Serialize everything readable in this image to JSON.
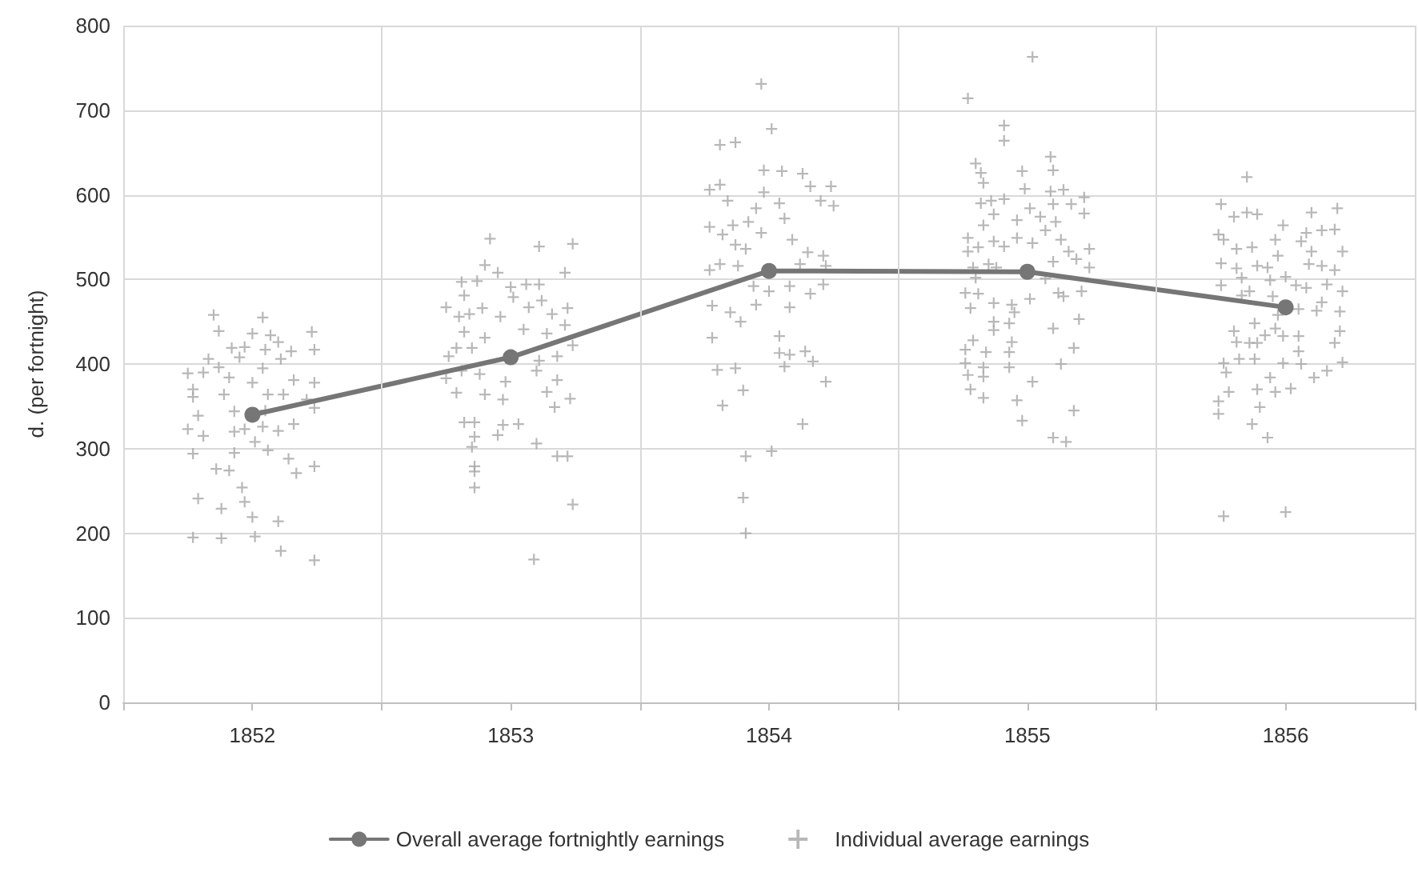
{
  "chart_data": {
    "type": "scatter",
    "ylabel": "d. (per fortnight)",
    "xlim": [
      1851.5,
      1856.5
    ],
    "xticks": [
      {
        "value": 1851.5,
        "label": null
      },
      1852,
      {
        "value": 1852.5,
        "label": null
      },
      1853,
      {
        "value": 1853.5,
        "label": null
      },
      1854,
      {
        "value": 1854.5,
        "label": null
      },
      1855,
      {
        "value": 1855.5,
        "label": null
      },
      1856,
      {
        "value": 1856.5,
        "label": null
      }
    ],
    "ylim": [
      0,
      800
    ],
    "yticks": [
      0,
      100,
      200,
      300,
      400,
      500,
      600,
      700,
      800
    ],
    "grid": true,
    "legend": "bottom",
    "series": [
      {
        "name": "Overall average fortnightly earnings",
        "type": "line",
        "color": "#767676",
        "marker": "circle",
        "line_style": "solid",
        "x": [
          1852,
          1853,
          1854,
          1855,
          1856
        ],
        "values": [
          340,
          408,
          510,
          509,
          467
        ]
      },
      {
        "name": "Individual average earnings",
        "type": "scatter",
        "color": "#a6a6a6",
        "marker": "cross",
        "x": [
          1851.85,
          1852.04,
          1851.87,
          1852,
          1852.23,
          1852.07,
          1852.1,
          1851.92,
          1851.97,
          1852.05,
          1852.24,
          1852.15,
          1851.95,
          1851.83,
          1852.11,
          1851.87,
          1852.04,
          1851.75,
          1851.81,
          1851.91,
          1852,
          1852.16,
          1852.24,
          1851.77,
          1851.89,
          1852.06,
          1852.12,
          1852.21,
          1851.77,
          1851.93,
          1851.79,
          1852.05,
          1852.24,
          1852.16,
          1851.75,
          1851.81,
          1851.93,
          1851.97,
          1852.04,
          1852.1,
          1852.01,
          1852.06,
          1851.77,
          1851.93,
          1852.14,
          1851.86,
          1851.91,
          1852.17,
          1852.24,
          1851.96,
          1851.79,
          1851.97,
          1851.88,
          1852,
          1852.1,
          1851.77,
          1851.88,
          1852.01,
          1852.11,
          1852.24,
          1852.92,
          1853.11,
          1853.24,
          1852.9,
          1852.95,
          1853.21,
          1852.81,
          1852.87,
          1853,
          1853.06,
          1853.11,
          1852.82,
          1853.01,
          1852.75,
          1852.89,
          1853.12,
          1853.22,
          1852.8,
          1852.84,
          1852.96,
          1853.07,
          1853.16,
          1852.82,
          1852.9,
          1853.05,
          1853.14,
          1853.21,
          1852.79,
          1852.85,
          1853.24,
          1852.76,
          1853.11,
          1853.18,
          1852.81,
          1852.88,
          1853.1,
          1852.75,
          1852.98,
          1853.18,
          1852.79,
          1852.9,
          1852.97,
          1853.14,
          1853.23,
          1853.17,
          1852.82,
          1852.86,
          1852.97,
          1853.03,
          1852.95,
          1852.86,
          1852.85,
          1853.1,
          1853.18,
          1853.22,
          1852.86,
          1852.86,
          1852.86,
          1853.24,
          1853.09,
          1853.97,
          1854.01,
          1853.81,
          1853.87,
          1853.98,
          1854.05,
          1854.13,
          1854.16,
          1853.77,
          1853.81,
          1854.24,
          1853.84,
          1853.98,
          1854.2,
          1854.04,
          1853.95,
          1854.25,
          1854.06,
          1853.77,
          1853.86,
          1853.92,
          1853.97,
          1853.82,
          1854.09,
          1853.87,
          1853.91,
          1854.15,
          1854.21,
          1853.77,
          1853.81,
          1853.88,
          1854.12,
          1854.22,
          1853.94,
          1854,
          1854.08,
          1854.16,
          1854.21,
          1853.78,
          1853.95,
          1854.08,
          1853.85,
          1853.89,
          1853.78,
          1854.04,
          1854.04,
          1854.08,
          1854.14,
          1854.17,
          1853.8,
          1853.87,
          1854.06,
          1854.22,
          1853.9,
          1853.82,
          1854.13,
          1853.91,
          1854.01,
          1853.9,
          1853.91,
          1855.02,
          1854.77,
          1854.91,
          1854.91,
          1855.09,
          1854.8,
          1854.82,
          1854.98,
          1855.1,
          1854.83,
          1854.99,
          1855.09,
          1855.14,
          1855.22,
          1854.82,
          1854.91,
          1854.86,
          1855.1,
          1855.17,
          1855.01,
          1855.22,
          1854.87,
          1855.05,
          1854.96,
          1854.83,
          1855.11,
          1855.07,
          1854.77,
          1854.87,
          1854.96,
          1855.02,
          1855.13,
          1854.77,
          1855.16,
          1855.24,
          1854.81,
          1854.91,
          1855.19,
          1855.1,
          1854.79,
          1854.85,
          1854.88,
          1855.24,
          1854.8,
          1855.07,
          1854.76,
          1854.81,
          1855.12,
          1855.21,
          1855.01,
          1854.87,
          1854.94,
          1855.14,
          1854.78,
          1854.95,
          1854.87,
          1854.93,
          1855.2,
          1854.87,
          1855.1,
          1854.79,
          1854.94,
          1854.76,
          1855.18,
          1854.84,
          1854.93,
          1854.76,
          1855.13,
          1854.83,
          1854.93,
          1854.77,
          1854.83,
          1855.02,
          1854.78,
          1854.83,
          1854.96,
          1855.18,
          1854.98,
          1855.1,
          1855.15,
          1855.85,
          1855.75,
          1855.8,
          1855.85,
          1855.89,
          1856.1,
          1856.2,
          1855.99,
          1855.74,
          1855.76,
          1856.08,
          1856.14,
          1856.19,
          1855.96,
          1856.06,
          1855.81,
          1855.87,
          1856.1,
          1856.22,
          1855.97,
          1855.75,
          1855.89,
          1855.93,
          1856.09,
          1856.14,
          1855.81,
          1856.19,
          1855.83,
          1856,
          1855.94,
          1855.75,
          1856.04,
          1856.08,
          1856.16,
          1855.86,
          1856.22,
          1855.83,
          1855.95,
          1856.14,
          1856.05,
          1856.21,
          1856.12,
          1855.97,
          1855.88,
          1855.8,
          1856.21,
          1855.96,
          1855.99,
          1856.05,
          1855.92,
          1855.81,
          1855.86,
          1855.89,
          1856.19,
          1856.05,
          1855.76,
          1855.82,
          1855.88,
          1855.99,
          1856.06,
          1856.22,
          1855.77,
          1856.16,
          1856.11,
          1855.94,
          1855.78,
          1855.89,
          1855.96,
          1856.02,
          1855.74,
          1855.9,
          1855.74,
          1855.87,
          1855.93,
          1855.76,
          1856
        ],
        "values": [
          458,
          455,
          439,
          436,
          438,
          434,
          426,
          419,
          420,
          417,
          417,
          415,
          408,
          406,
          406,
          396,
          395,
          389,
          390,
          384,
          378,
          381,
          378,
          370,
          364,
          364,
          364,
          358,
          361,
          344,
          339,
          345,
          348,
          329,
          323,
          315,
          320,
          323,
          326,
          321,
          308,
          298,
          294,
          295,
          288,
          276,
          274,
          271,
          279,
          254,
          241,
          237,
          229,
          219,
          214,
          195,
          194,
          196,
          179,
          168,
          548,
          539,
          542,
          517,
          508,
          508,
          497,
          498,
          491,
          494,
          494,
          481,
          479,
          467,
          466,
          475,
          466,
          456,
          459,
          456,
          467,
          459,
          438,
          431,
          441,
          436,
          446,
          419,
          419,
          422,
          409,
          404,
          409,
          392,
          388,
          392,
          383,
          379,
          381,
          366,
          364,
          358,
          367,
          359,
          349,
          331,
          331,
          328,
          329,
          316,
          314,
          302,
          306,
          291,
          291,
          279,
          273,
          254,
          234,
          169,
          731,
          678,
          659,
          662,
          629,
          628,
          625,
          610,
          606,
          612,
          610,
          593,
          603,
          593,
          590,
          584,
          587,
          572,
          562,
          564,
          568,
          555,
          553,
          547,
          541,
          536,
          532,
          528,
          511,
          518,
          516,
          518,
          516,
          492,
          486,
          492,
          483,
          494,
          469,
          470,
          467,
          461,
          450,
          431,
          433,
          413,
          411,
          415,
          403,
          393,
          395,
          397,
          379,
          369,
          351,
          329,
          291,
          297,
          242,
          200,
          763,
          714,
          682,
          664,
          645,
          637,
          626,
          628,
          629,
          614,
          607,
          604,
          606,
          597,
          590,
          595,
          593,
          589,
          589,
          584,
          578,
          577,
          574,
          570,
          564,
          568,
          558,
          549,
          545,
          549,
          543,
          547,
          533,
          533,
          536,
          538,
          539,
          524,
          521,
          514,
          518,
          514,
          514,
          502,
          501,
          484,
          483,
          484,
          486,
          477,
          472,
          470,
          480,
          466,
          461,
          450,
          448,
          453,
          440,
          442,
          428,
          426,
          417,
          419,
          414,
          414,
          401,
          400,
          396,
          396,
          387,
          385,
          379,
          370,
          360,
          357,
          345,
          333,
          313,
          308,
          621,
          589,
          574,
          579,
          577,
          579,
          584,
          564,
          553,
          547,
          555,
          558,
          559,
          547,
          545,
          536,
          538,
          533,
          533,
          528,
          519,
          516,
          514,
          518,
          516,
          513,
          511,
          502,
          503,
          499,
          493,
          493,
          490,
          494,
          486,
          486,
          481,
          480,
          473,
          465,
          462,
          463,
          458,
          448,
          439,
          439,
          442,
          433,
          433,
          434,
          426,
          425,
          425,
          425,
          415,
          401,
          406,
          406,
          401,
          400,
          402,
          390,
          392,
          384,
          384,
          367,
          370,
          367,
          371,
          356,
          349,
          341,
          329,
          313,
          220,
          225
        ]
      }
    ]
  }
}
